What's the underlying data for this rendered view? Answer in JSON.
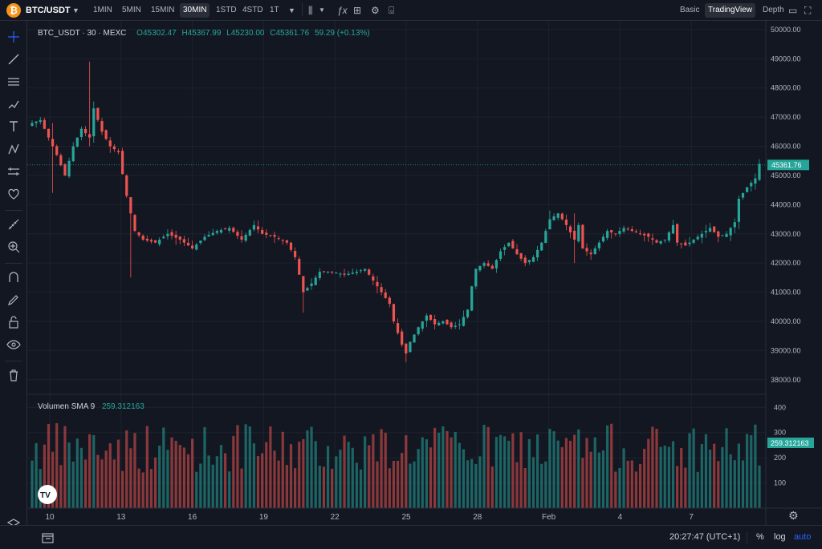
{
  "toolbar": {
    "symbol": "BTC/USDT",
    "intervals": [
      "1MIN",
      "5MIN",
      "15MIN",
      "30MIN",
      "1STD",
      "4STD",
      "1T"
    ],
    "active_interval": "30MIN",
    "modes": [
      "Basic",
      "TradingView",
      "Depth"
    ],
    "active_mode": "TradingView"
  },
  "legend": {
    "title": "BTC_USDT · 30 · MEXC",
    "open": "O45302.47",
    "high": "H45367.99",
    "low": "L45230.00",
    "close": "C45361.76",
    "change": "59.29 (+0.13%)"
  },
  "volume_legend": {
    "label": "Volumen SMA 9",
    "value": "259.312163"
  },
  "price_axis": {
    "ticks": [
      "50000.00",
      "49000.00",
      "48000.00",
      "47000.00",
      "46000.00",
      "45000.00",
      "44000.00",
      "43000.00",
      "42000.00",
      "41000.00",
      "40000.00",
      "39000.00",
      "38000.00"
    ],
    "current_price": "45361.76"
  },
  "volume_axis": {
    "ticks": [
      "400",
      "300",
      "200",
      "100"
    ],
    "current_value": "259.312163"
  },
  "time_axis": {
    "ticks": [
      "10",
      "13",
      "16",
      "19",
      "22",
      "25",
      "28",
      "Feb",
      "4",
      "7"
    ]
  },
  "bottom": {
    "clock": "20:27:47 (UTC+1)",
    "percent": "%",
    "log": "log",
    "auto": "auto"
  },
  "colors": {
    "up": "#26a69a",
    "down": "#ef5350",
    "background": "#131722",
    "grid": "#1e222d",
    "accent": "#2962ff"
  },
  "chart_data": {
    "type": "candlestick",
    "symbol": "BTC_USDT",
    "interval": "30",
    "ylim": [
      37500,
      50300
    ],
    "path": [
      [
        0,
        46800
      ],
      [
        2,
        46900
      ],
      [
        4,
        46300
      ],
      [
        6,
        45700
      ],
      [
        8,
        45000
      ],
      [
        10,
        46000
      ],
      [
        12,
        46600
      ],
      [
        14,
        46300
      ],
      [
        15,
        47300
      ],
      [
        17,
        46500
      ],
      [
        19,
        46000
      ],
      [
        21,
        45800
      ],
      [
        23,
        44300
      ],
      [
        25,
        43100
      ],
      [
        27,
        42800
      ],
      [
        30,
        42700
      ],
      [
        33,
        43000
      ],
      [
        36,
        42800
      ],
      [
        39,
        42500
      ],
      [
        42,
        42900
      ],
      [
        45,
        43100
      ],
      [
        48,
        43200
      ],
      [
        51,
        42800
      ],
      [
        54,
        43300
      ],
      [
        56,
        43000
      ],
      [
        59,
        42900
      ],
      [
        62,
        42700
      ],
      [
        64,
        42200
      ],
      [
        66,
        41000
      ],
      [
        68,
        41300
      ],
      [
        70,
        41700
      ],
      [
        73,
        41700
      ],
      [
        76,
        41600
      ],
      [
        79,
        41700
      ],
      [
        81,
        41800
      ],
      [
        83,
        41400
      ],
      [
        85,
        41000
      ],
      [
        87,
        40600
      ],
      [
        88,
        40000
      ],
      [
        90,
        39200
      ],
      [
        91,
        38900
      ],
      [
        92,
        39300
      ],
      [
        94,
        39800
      ],
      [
        96,
        40200
      ],
      [
        98,
        39900
      ],
      [
        100,
        40000
      ],
      [
        102,
        39800
      ],
      [
        104,
        39900
      ],
      [
        106,
        40400
      ],
      [
        107,
        41200
      ],
      [
        108,
        41800
      ],
      [
        110,
        42000
      ],
      [
        112,
        41800
      ],
      [
        114,
        42400
      ],
      [
        116,
        42700
      ],
      [
        118,
        42300
      ],
      [
        120,
        42000
      ],
      [
        122,
        42200
      ],
      [
        124,
        42700
      ],
      [
        126,
        43500
      ],
      [
        128,
        43700
      ],
      [
        130,
        43300
      ],
      [
        132,
        42800
      ],
      [
        133,
        43300
      ],
      [
        134,
        42500
      ],
      [
        136,
        42300
      ],
      [
        138,
        42700
      ],
      [
        140,
        43100
      ],
      [
        142,
        43000
      ],
      [
        144,
        43200
      ],
      [
        146,
        43100
      ],
      [
        148,
        43000
      ],
      [
        150,
        42900
      ],
      [
        152,
        42700
      ],
      [
        154,
        42800
      ],
      [
        156,
        43300
      ],
      [
        157,
        42700
      ],
      [
        159,
        42600
      ],
      [
        161,
        42800
      ],
      [
        163,
        43000
      ],
      [
        165,
        43200
      ],
      [
        167,
        42900
      ],
      [
        169,
        43000
      ],
      [
        171,
        43400
      ],
      [
        172,
        44200
      ],
      [
        174,
        44600
      ],
      [
        176,
        44900
      ],
      [
        177,
        45400
      ]
    ],
    "spikes": [
      {
        "i": 5,
        "high": 46800,
        "low": 44400
      },
      {
        "i": 14,
        "high": 48900,
        "low": 46000
      },
      {
        "i": 24,
        "high": 44100,
        "low": 41500
      },
      {
        "i": 66,
        "high": 41200,
        "low": 40300
      },
      {
        "i": 91,
        "high": 39200,
        "low": 38600
      },
      {
        "i": 126,
        "high": 43800,
        "low": 43200
      },
      {
        "i": 132,
        "high": 43700,
        "low": 42000
      }
    ]
  }
}
